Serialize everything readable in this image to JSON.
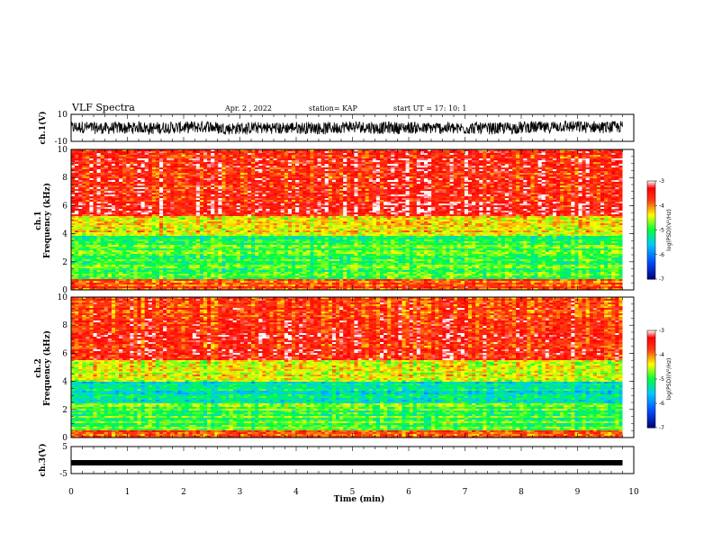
{
  "header": {
    "title": "VLF Spectra",
    "date": "Apr. 2 , 2022",
    "station": "station= KAP",
    "start": "start UT = 17: 10: 1"
  },
  "chart_data": [
    {
      "type": "line",
      "name": "ch1-waveform",
      "ylabel": "ch.1(V)",
      "ylim": [
        -10,
        10
      ],
      "yticks": [
        "10",
        "-10"
      ],
      "x_range_min": [
        0,
        9.8
      ]
    },
    {
      "type": "heatmap",
      "name": "ch1-spectrogram",
      "ylabel": "ch.1\nFrequency (kHz)",
      "ylabel_lines": [
        "ch.1",
        "Frequency (kHz)"
      ],
      "ylim": [
        0,
        10
      ],
      "yticks": [
        "0",
        "2",
        "4",
        "6",
        "8",
        "10"
      ],
      "x_range_min": [
        0,
        9.8
      ],
      "bands_khz": [
        {
          "range": [
            0,
            0.8
          ],
          "log_psd": -3.8
        },
        {
          "range": [
            0.8,
            3.8
          ],
          "log_psd": -4.9
        },
        {
          "range": [
            3.8,
            5.2
          ],
          "log_psd": -4.3
        },
        {
          "range": [
            5.2,
            10
          ],
          "log_psd": -3.5
        }
      ]
    },
    {
      "type": "heatmap",
      "name": "ch2-spectrogram",
      "ylabel": "ch.2\nFrequency (kHz)",
      "ylabel_lines": [
        "ch.2",
        "Frequency (kHz)"
      ],
      "ylim": [
        0,
        10
      ],
      "yticks": [
        "0",
        "2",
        "4",
        "6",
        "8",
        "10"
      ],
      "x_range_min": [
        0,
        9.8
      ],
      "bands_khz": [
        {
          "range": [
            0,
            0.5
          ],
          "log_psd": -3.7
        },
        {
          "range": [
            0.5,
            2.4
          ],
          "log_psd": -4.9
        },
        {
          "range": [
            2.4,
            4.0
          ],
          "log_psd": -5.3
        },
        {
          "range": [
            4.0,
            5.5
          ],
          "log_psd": -4.4
        },
        {
          "range": [
            5.5,
            10
          ],
          "log_psd": -3.6
        }
      ]
    },
    {
      "type": "line",
      "name": "ch3-waveform",
      "ylabel": "ch.3(V)",
      "ylim": [
        -5,
        5
      ],
      "yticks": [
        "5",
        "-5"
      ],
      "x_range_min": [
        0,
        9.8
      ],
      "level_v": -1.0
    }
  ],
  "xaxis": {
    "label": "Time (min)",
    "range": [
      0,
      10
    ],
    "ticks": [
      "0",
      "1",
      "2",
      "3",
      "4",
      "5",
      "6",
      "7",
      "8",
      "9",
      "10"
    ]
  },
  "colorbar": {
    "label": "log(PSD)(V²/Hz)",
    "range": [
      -7,
      -3
    ],
    "ticks": [
      "-3",
      "-4",
      "-5",
      "-6",
      "-7"
    ]
  },
  "colors": {
    "low": "#000080",
    "mid_low": "#00a0ff",
    "mid": "#00ff30",
    "mid_high": "#ffff00",
    "high": "#ff2010"
  }
}
